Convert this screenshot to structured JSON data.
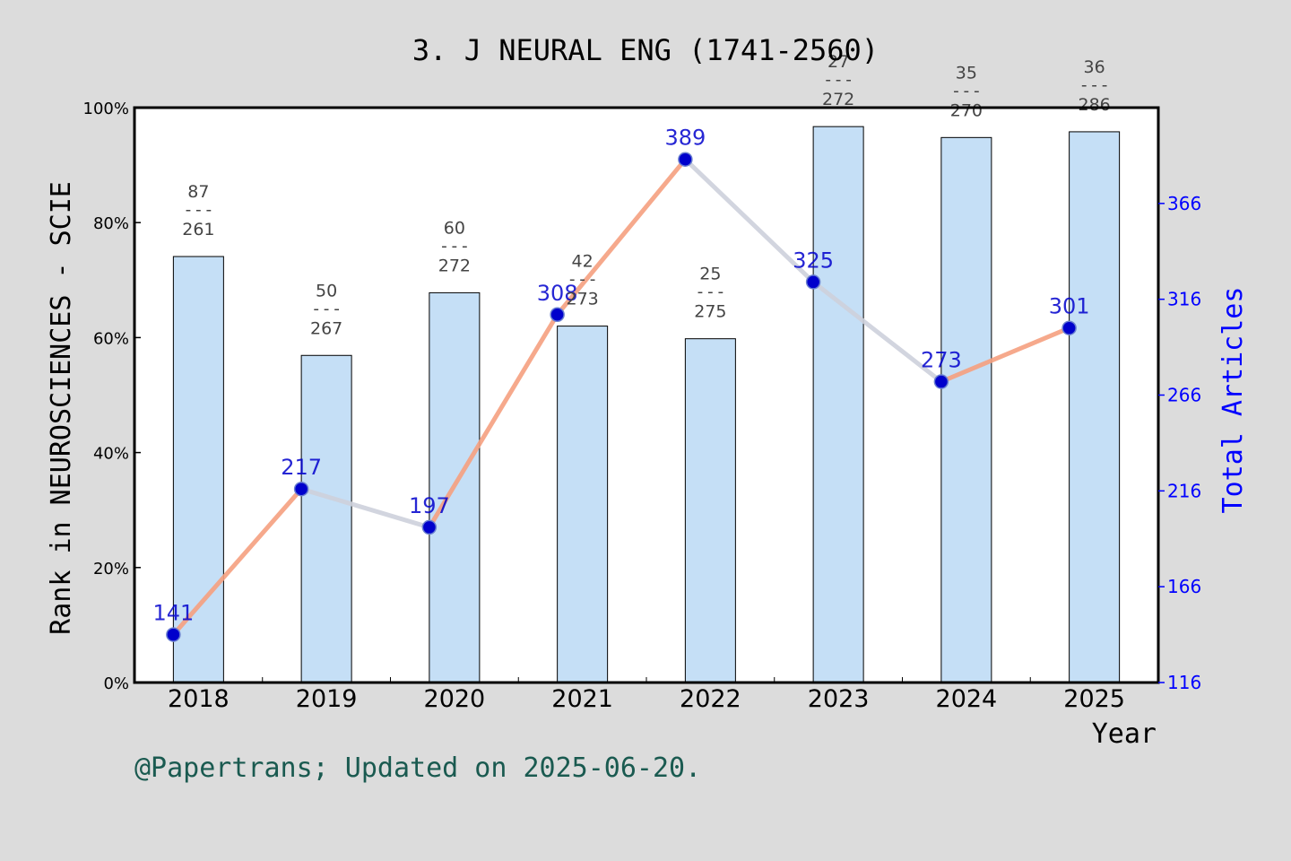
{
  "chart_data": {
    "type": "bar",
    "title": "3. J NEURAL ENG (1741-2560)",
    "xlabel": "Year",
    "ylabel": "Rank in NEUROSCIENCES - SCIE",
    "y2label": "Total Articles",
    "categories": [
      "2018",
      "2019",
      "2020",
      "2021",
      "2022",
      "2023",
      "2024",
      "2025"
    ],
    "ylim": [
      0,
      100
    ],
    "y_ticks": [
      "0%",
      "20%",
      "40%",
      "60%",
      "80%",
      "100%"
    ],
    "y2_ticks": [
      "116",
      "166",
      "216",
      "266",
      "316",
      "366"
    ],
    "y2lim": [
      116,
      416
    ],
    "series": [
      {
        "kind": "bar",
        "values": [
          74.1,
          56.9,
          67.8,
          62.0,
          59.8,
          96.7,
          94.8,
          95.8
        ],
        "rank_labels": [
          {
            "rank": "87",
            "total": "261"
          },
          {
            "rank": "50",
            "total": "267"
          },
          {
            "rank": "60",
            "total": "272"
          },
          {
            "rank": "42",
            "total": "273"
          },
          {
            "rank": "25",
            "total": "275"
          },
          {
            "rank": "27",
            "total": "272"
          },
          {
            "rank": "35",
            "total": "270"
          },
          {
            "rank": "36",
            "total": "286"
          }
        ],
        "divider": "---"
      },
      {
        "kind": "line",
        "axis": "right",
        "values": [
          141,
          217,
          197,
          308,
          389,
          325,
          273,
          301
        ],
        "labels": [
          "141",
          "217",
          "197",
          "308",
          "389",
          "325",
          "273",
          "301"
        ]
      }
    ],
    "grid": false,
    "colors": {
      "background": "#dcdcdc",
      "plot_bg": "#ffffff",
      "bar_fill": "#c5dff6",
      "line_up": "#f5a07f",
      "line_down": "#cdd0dc",
      "marker": "#0000cc",
      "right_axis": "#0000ff",
      "footer": "#1a5a50",
      "rank_text": "#444444"
    }
  },
  "footer": "@Papertrans; Updated on 2025-06-20."
}
